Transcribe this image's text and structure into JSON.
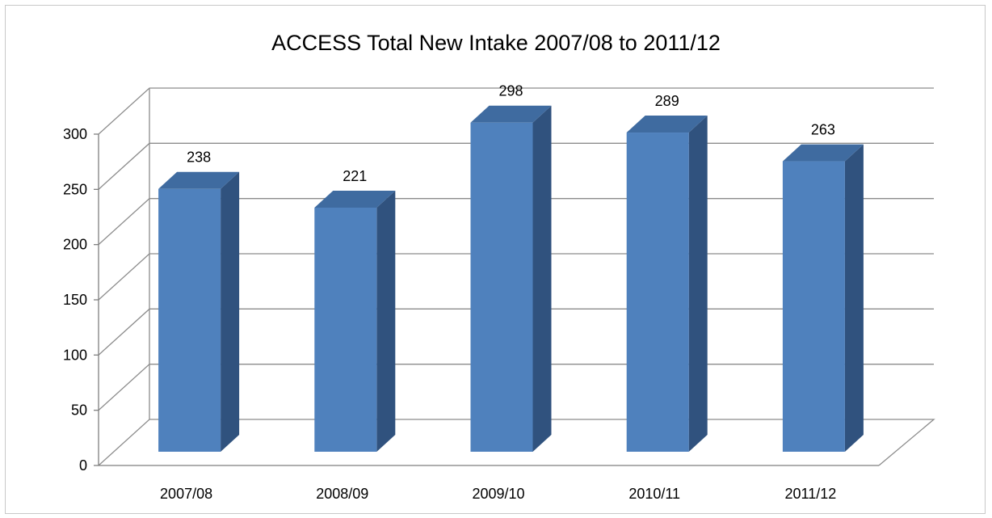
{
  "chart_data": {
    "type": "bar",
    "title": "ACCESS Total New Intake 2007/08 to 2011/12",
    "xlabel": "",
    "ylabel": "",
    "categories": [
      "2007/08",
      "2008/09",
      "2009/10",
      "2010/11",
      "2011/12"
    ],
    "values": [
      238,
      221,
      298,
      289,
      263
    ],
    "ylim": [
      0,
      300
    ],
    "yticks": [
      0,
      50,
      100,
      150,
      200,
      250,
      300
    ],
    "grid": true,
    "legend": "none",
    "style": "3d-column"
  },
  "colors": {
    "bar_front": "#4F81BD",
    "bar_side": "#30527E",
    "bar_top": "#3F6BA0",
    "gridline": "#8c8c8c",
    "axis": "#7f7f7f"
  }
}
